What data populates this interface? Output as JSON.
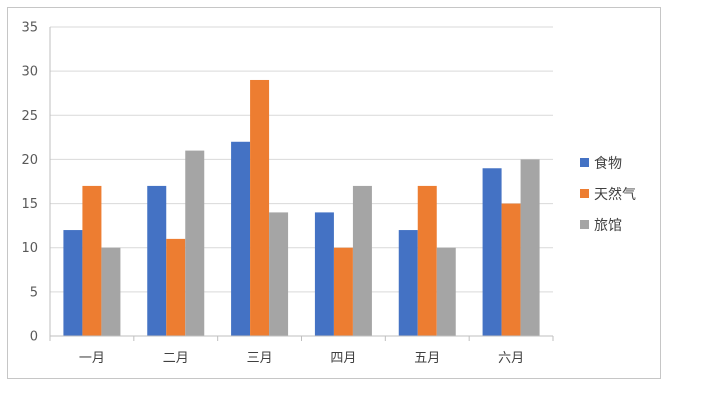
{
  "chart_data": {
    "type": "bar",
    "categories": [
      "一月",
      "二月",
      "三月",
      "四月",
      "五月",
      "六月"
    ],
    "series": [
      {
        "name": "食物",
        "color": "#4472c4",
        "values": [
          12,
          17,
          22,
          14,
          12,
          19
        ]
      },
      {
        "name": "天然气",
        "color": "#ed7d31",
        "values": [
          17,
          11,
          29,
          10,
          17,
          15
        ]
      },
      {
        "name": "旅馆",
        "color": "#a5a5a5",
        "values": [
          10,
          21,
          14,
          17,
          10,
          20
        ]
      }
    ],
    "ylim": [
      0,
      35
    ],
    "yticks": [
      0,
      5,
      10,
      15,
      20,
      25,
      30,
      35
    ],
    "grid": true,
    "legend_position": "right"
  }
}
